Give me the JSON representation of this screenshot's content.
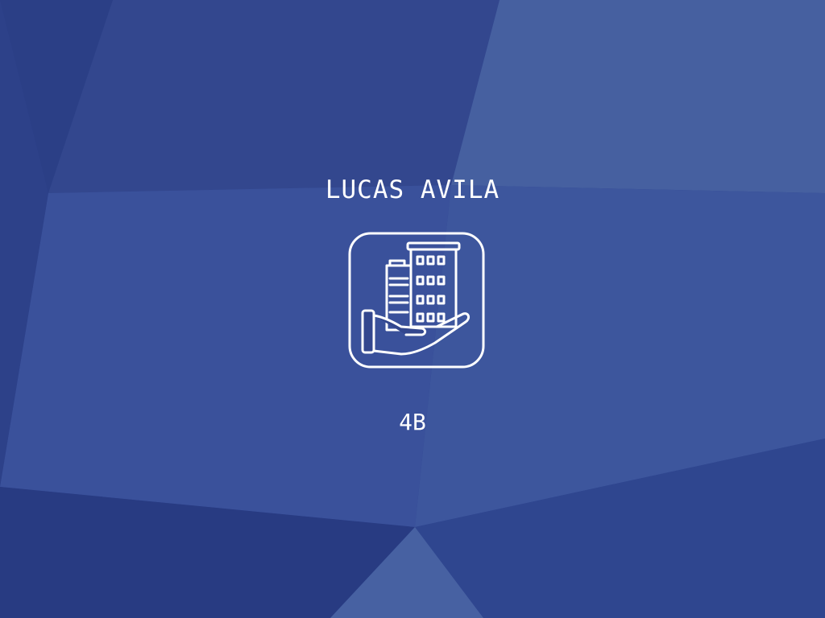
{
  "screen": {
    "title": "LUCAS AVILA",
    "subtitle": "4B",
    "logo_icon": "building-in-hand-icon"
  },
  "colors": {
    "text": "#ffffff",
    "background_base": "#2f4590",
    "background_dark": "#26367d",
    "background_light": "#4a64a2",
    "icon_stroke": "#ffffff"
  }
}
